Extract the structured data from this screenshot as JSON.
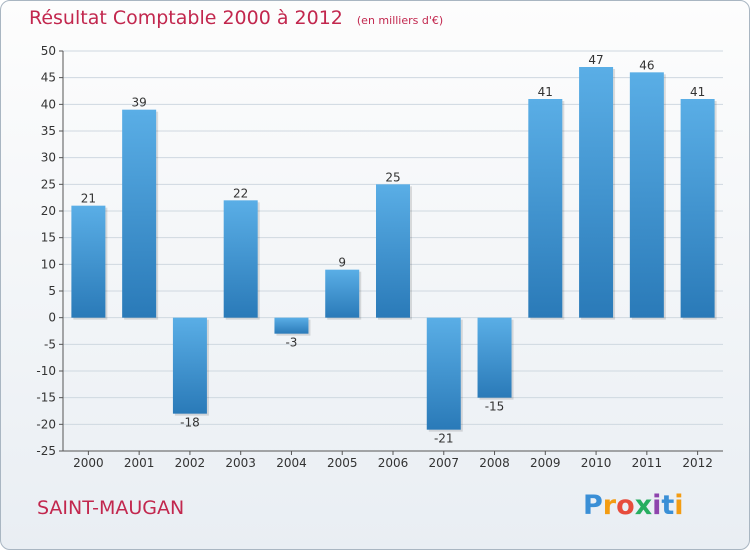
{
  "header": {
    "title": "Résultat Comptable 2000 à 2012",
    "subtitle": "(en milliers d'€)"
  },
  "footer": {
    "commune": "SAINT-MAUGAN",
    "logo_letters": [
      "P",
      "r",
      "o",
      "x",
      "i",
      "t",
      "i"
    ],
    "logo_colors": [
      "#3a8fd6",
      "#f39c12",
      "#e74c3c",
      "#27ae60",
      "#8e44ad",
      "#3a8fd6",
      "#f39c12"
    ]
  },
  "chart_data": {
    "type": "bar",
    "title": "Résultat Comptable 2000 à 2012",
    "subtitle": "(en milliers d'€)",
    "xlabel": "",
    "ylabel": "",
    "categories": [
      "2000",
      "2001",
      "2002",
      "2003",
      "2004",
      "2005",
      "2006",
      "2007",
      "2008",
      "2009",
      "2010",
      "2011",
      "2012"
    ],
    "values": [
      21,
      39,
      -18,
      22,
      -3,
      9,
      25,
      -21,
      -15,
      41,
      47,
      46,
      41
    ],
    "ylim": [
      -25,
      50
    ],
    "yticks": [
      -25,
      -20,
      -15,
      -10,
      -5,
      0,
      5,
      10,
      15,
      20,
      25,
      30,
      35,
      40,
      45,
      50
    ],
    "grid": true,
    "legend": "none",
    "colors": {
      "bar_top": "#5aaee6",
      "bar_bottom": "#2a7ab8",
      "grid": "#cfd8e0",
      "axis": "#555555"
    }
  }
}
